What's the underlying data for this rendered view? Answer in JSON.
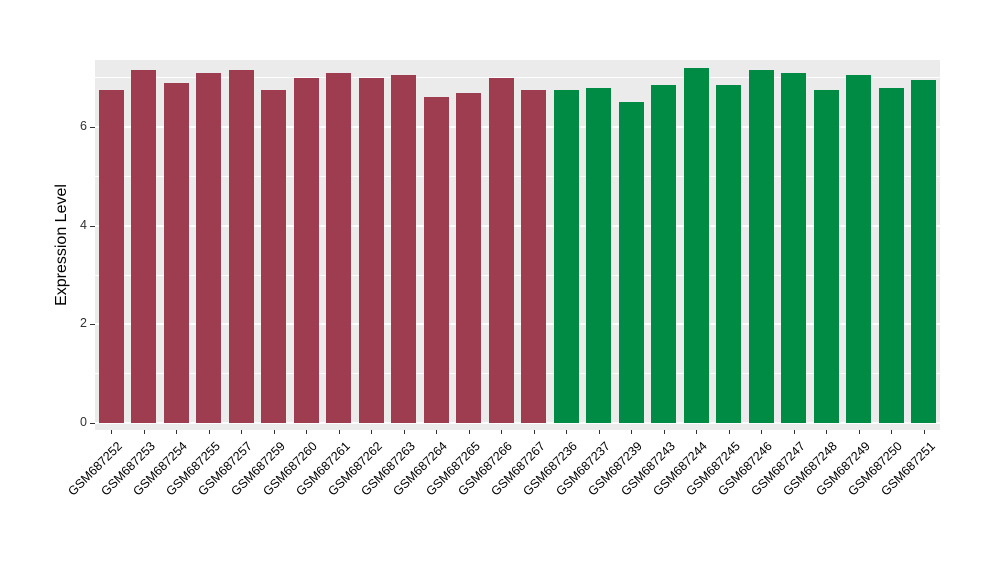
{
  "figure": {
    "background": "#FFFFFF",
    "panel_background": "#EBEBEB",
    "gridline_color": "#FFFFFF"
  },
  "chart_data": {
    "type": "bar",
    "title": "",
    "xlabel": "",
    "ylabel": "Expression Level",
    "ylim": [
      0,
      7.36
    ],
    "yticks": [
      0,
      2,
      4,
      6
    ],
    "yticks_minor": [
      1,
      3,
      5,
      7
    ],
    "grid": true,
    "legend_position": "none",
    "categories": [
      "GSM687252",
      "GSM687253",
      "GSM687254",
      "GSM687255",
      "GSM687257",
      "GSM687259",
      "GSM687260",
      "GSM687261",
      "GSM687262",
      "GSM687263",
      "GSM687264",
      "GSM687265",
      "GSM687266",
      "GSM687267",
      "GSM687236",
      "GSM687237",
      "GSM687239",
      "GSM687243",
      "GSM687244",
      "GSM687245",
      "GSM687246",
      "GSM687247",
      "GSM687248",
      "GSM687249",
      "GSM687250",
      "GSM687251"
    ],
    "values": [
      6.75,
      7.15,
      6.9,
      7.1,
      7.15,
      6.75,
      7.0,
      7.1,
      7.0,
      7.05,
      6.6,
      6.7,
      7.0,
      6.75,
      6.75,
      6.8,
      6.5,
      6.85,
      7.2,
      6.85,
      7.15,
      7.1,
      6.75,
      7.05,
      6.8,
      6.95
    ],
    "groups": [
      "group1",
      "group1",
      "group1",
      "group1",
      "group1",
      "group1",
      "group1",
      "group1",
      "group1",
      "group1",
      "group1",
      "group1",
      "group1",
      "group1",
      "group2",
      "group2",
      "group2",
      "group2",
      "group2",
      "group2",
      "group2",
      "group2",
      "group2",
      "group2",
      "group2",
      "group2"
    ],
    "group_colors": {
      "group1": "#9E3D50",
      "group2": "#008B45"
    }
  }
}
